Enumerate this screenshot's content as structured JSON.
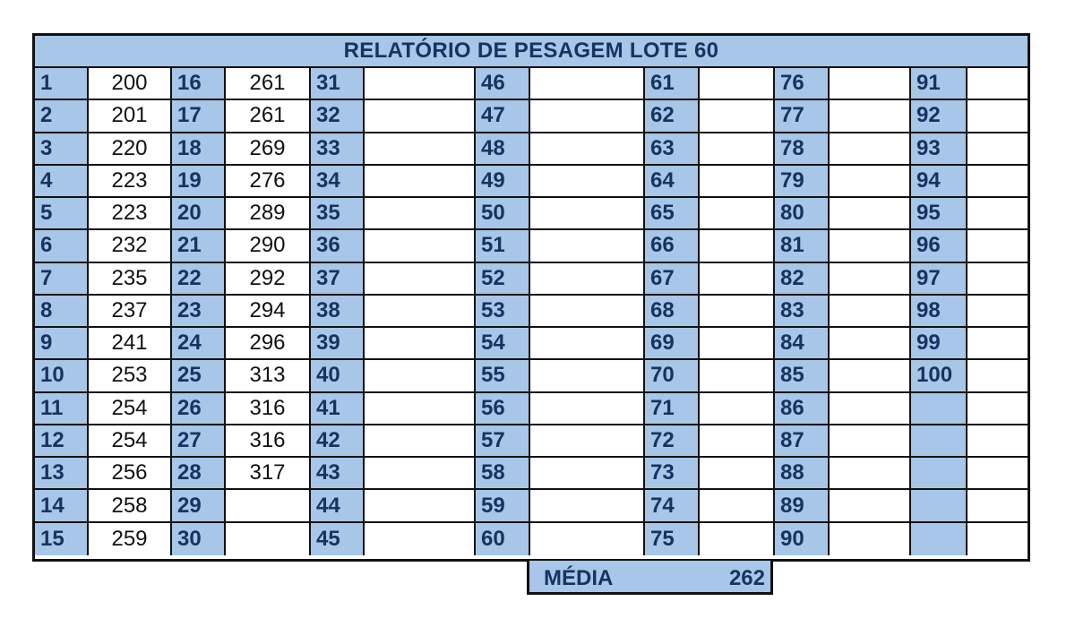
{
  "title": "RELATÓRIO DE PESAGEM LOTE 60",
  "columns": [
    {
      "numbers": [
        "1",
        "2",
        "3",
        "4",
        "5",
        "6",
        "7",
        "8",
        "9",
        "10",
        "11",
        "12",
        "13",
        "14",
        "15"
      ],
      "values": [
        "200",
        "201",
        "220",
        "223",
        "223",
        "232",
        "235",
        "237",
        "241",
        "253",
        "254",
        "254",
        "256",
        "258",
        "259"
      ]
    },
    {
      "numbers": [
        "16",
        "17",
        "18",
        "19",
        "20",
        "21",
        "22",
        "23",
        "24",
        "25",
        "26",
        "27",
        "28",
        "29",
        "30"
      ],
      "values": [
        "261",
        "261",
        "269",
        "276",
        "289",
        "290",
        "292",
        "294",
        "296",
        "313",
        "316",
        "316",
        "317",
        "",
        ""
      ]
    },
    {
      "numbers": [
        "31",
        "32",
        "33",
        "34",
        "35",
        "36",
        "37",
        "38",
        "39",
        "40",
        "41",
        "42",
        "43",
        "44",
        "45"
      ],
      "values": [
        "",
        "",
        "",
        "",
        "",
        "",
        "",
        "",
        "",
        "",
        "",
        "",
        "",
        "",
        ""
      ]
    },
    {
      "numbers": [
        "46",
        "47",
        "48",
        "49",
        "50",
        "51",
        "52",
        "53",
        "54",
        "55",
        "56",
        "57",
        "58",
        "59",
        "60"
      ],
      "values": [
        "",
        "",
        "",
        "",
        "",
        "",
        "",
        "",
        "",
        "",
        "",
        "",
        "",
        "",
        ""
      ]
    },
    {
      "numbers": [
        "61",
        "62",
        "63",
        "64",
        "65",
        "66",
        "67",
        "68",
        "69",
        "70",
        "71",
        "72",
        "73",
        "74",
        "75"
      ],
      "values": [
        "",
        "",
        "",
        "",
        "",
        "",
        "",
        "",
        "",
        "",
        "",
        "",
        "",
        "",
        ""
      ]
    },
    {
      "numbers": [
        "76",
        "77",
        "78",
        "79",
        "80",
        "81",
        "82",
        "83",
        "84",
        "85",
        "86",
        "87",
        "88",
        "89",
        "90"
      ],
      "values": [
        "",
        "",
        "",
        "",
        "",
        "",
        "",
        "",
        "",
        "",
        "",
        "",
        "",
        "",
        ""
      ]
    },
    {
      "numbers": [
        "91",
        "92",
        "93",
        "94",
        "95",
        "96",
        "97",
        "98",
        "99",
        "100",
        "",
        "",
        "",
        "",
        ""
      ],
      "values": [
        "",
        "",
        "",
        "",
        "",
        "",
        "",
        "",
        "",
        "",
        "",
        "",
        "",
        "",
        ""
      ]
    }
  ],
  "summary": {
    "label": "MÉDIA",
    "value": "262"
  },
  "colors": {
    "header_fill": "#a7c6e8",
    "number_text": "#17335f",
    "grid_line": "#111111"
  }
}
